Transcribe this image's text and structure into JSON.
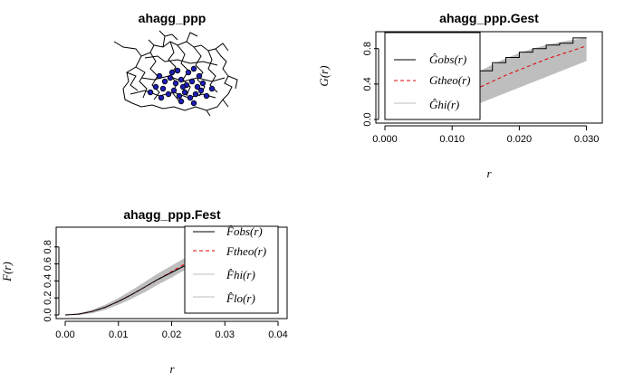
{
  "colors": {
    "line": "#000000",
    "theo": "#e00000",
    "envelope": "#bebebe",
    "points": "#1c1cb4"
  },
  "map_panel": {
    "title": "ahagg_ppp"
  },
  "chart_data": [
    {
      "id": "gest",
      "type": "line",
      "title": "ahagg_ppp.Gest",
      "xlabel": "r",
      "ylabel": "G(r)",
      "xlim": [
        0,
        0.031
      ],
      "ylim": [
        0,
        0.95
      ],
      "xticks": [
        "0.000",
        "0.010",
        "0.020",
        "0.030"
      ],
      "xtick_values": [
        0,
        0.01,
        0.02,
        0.03
      ],
      "yticks": [
        "0.0",
        "0.4",
        "0.8"
      ],
      "ytick_values": [
        0,
        0.4,
        0.8
      ],
      "legend": {
        "position": "top-left",
        "entries": [
          {
            "name": "obs",
            "label": "Ĝobs(r)",
            "style": "solid",
            "color": "#000000"
          },
          {
            "name": "theo",
            "label": "Gtheo(r)",
            "style": "dashed",
            "color": "#e00000"
          },
          {
            "name": "hi",
            "label": "Ĝhi(r)",
            "style": "solid",
            "color": "#bebebe"
          }
        ]
      },
      "series": [
        {
          "name": "obs",
          "x": [
            0,
            0.002,
            0.004,
            0.006,
            0.008,
            0.0095,
            0.011,
            0.013,
            0.014,
            0.016,
            0.018,
            0.02,
            0.022,
            0.024,
            0.026,
            0.028,
            0.03
          ],
          "values": [
            0,
            0.01,
            0.03,
            0.05,
            0.09,
            0.13,
            0.22,
            0.38,
            0.55,
            0.64,
            0.7,
            0.76,
            0.8,
            0.84,
            0.86,
            0.92,
            0.92
          ]
        },
        {
          "name": "theo",
          "x": [
            0,
            0.002,
            0.004,
            0.006,
            0.008,
            0.01,
            0.012,
            0.014,
            0.016,
            0.018,
            0.02,
            0.022,
            0.024,
            0.026,
            0.028,
            0.03
          ],
          "values": [
            0,
            0.02,
            0.06,
            0.11,
            0.16,
            0.22,
            0.29,
            0.36,
            0.43,
            0.5,
            0.56,
            0.62,
            0.68,
            0.73,
            0.78,
            0.83
          ]
        },
        {
          "name": "hi",
          "x": [
            0,
            0.002,
            0.004,
            0.006,
            0.008,
            0.01,
            0.012,
            0.014,
            0.016,
            0.018,
            0.02,
            0.022,
            0.024,
            0.026,
            0.028,
            0.03
          ],
          "values": [
            0.02,
            0.06,
            0.14,
            0.22,
            0.3,
            0.38,
            0.46,
            0.54,
            0.62,
            0.69,
            0.75,
            0.8,
            0.84,
            0.87,
            0.9,
            0.92
          ]
        },
        {
          "name": "lo",
          "x": [
            0,
            0.002,
            0.004,
            0.006,
            0.008,
            0.01,
            0.012,
            0.014,
            0.016,
            0.018,
            0.02,
            0.022,
            0.024,
            0.026,
            0.028,
            0.03
          ],
          "values": [
            0,
            0,
            0,
            0.02,
            0.05,
            0.08,
            0.13,
            0.18,
            0.24,
            0.3,
            0.36,
            0.42,
            0.48,
            0.54,
            0.6,
            0.66
          ]
        }
      ]
    },
    {
      "id": "fest",
      "type": "line",
      "title": "ahagg_ppp.Fest",
      "xlabel": "r",
      "ylabel": "F(r)",
      "xlim": [
        0,
        0.04
      ],
      "ylim": [
        0,
        1.0
      ],
      "xticks": [
        "0.00",
        "0.01",
        "0.02",
        "0.03",
        "0.04"
      ],
      "xtick_values": [
        0,
        0.01,
        0.02,
        0.03,
        0.04
      ],
      "yticks": [
        "0.0",
        "0.2",
        "0.4",
        "0.6",
        "0.8"
      ],
      "ytick_values": [
        0,
        0.2,
        0.4,
        0.6,
        0.8
      ],
      "legend": {
        "position": "right",
        "entries": [
          {
            "name": "obs",
            "label": "F̂obs(r)",
            "style": "solid",
            "color": "#000000"
          },
          {
            "name": "theo",
            "label": "Ftheo(r)",
            "style": "dashed",
            "color": "#e00000"
          },
          {
            "name": "hi",
            "label": "F̂hi(r)",
            "style": "solid",
            "color": "#bebebe"
          },
          {
            "name": "lo",
            "label": "F̂lo(r)",
            "style": "solid",
            "color": "#bebebe"
          }
        ]
      },
      "series": [
        {
          "name": "obs",
          "x": [
            0,
            0.0025,
            0.005,
            0.0075,
            0.01,
            0.0125,
            0.015,
            0.0175,
            0.02,
            0.0225,
            0.025,
            0.0275,
            0.03,
            0.0325,
            0.035,
            0.0375,
            0.04
          ],
          "values": [
            0,
            0.01,
            0.04,
            0.09,
            0.16,
            0.24,
            0.33,
            0.42,
            0.5,
            0.58,
            0.66,
            0.74,
            0.8,
            0.84,
            0.87,
            0.89,
            0.9
          ]
        },
        {
          "name": "theo",
          "x": [
            0,
            0.0025,
            0.005,
            0.0075,
            0.01,
            0.0125,
            0.015,
            0.0175,
            0.02,
            0.0225,
            0.025,
            0.0275,
            0.03,
            0.0325,
            0.035,
            0.0375,
            0.04
          ],
          "values": [
            0,
            0.01,
            0.04,
            0.09,
            0.16,
            0.24,
            0.33,
            0.42,
            0.51,
            0.6,
            0.68,
            0.75,
            0.81,
            0.86,
            0.9,
            0.93,
            0.95
          ]
        },
        {
          "name": "hi",
          "x": [
            0,
            0.0025,
            0.005,
            0.0075,
            0.01,
            0.0125,
            0.015,
            0.0175,
            0.02,
            0.0225,
            0.025,
            0.0275,
            0.03,
            0.0325,
            0.035,
            0.0375,
            0.04
          ],
          "values": [
            0,
            0.02,
            0.06,
            0.12,
            0.2,
            0.29,
            0.39,
            0.49,
            0.58,
            0.67,
            0.75,
            0.82,
            0.87,
            0.91,
            0.94,
            0.96,
            0.98
          ]
        },
        {
          "name": "lo",
          "x": [
            0,
            0.0025,
            0.005,
            0.0075,
            0.01,
            0.0125,
            0.015,
            0.0175,
            0.02,
            0.0225,
            0.025,
            0.0275,
            0.03,
            0.0325,
            0.035,
            0.0375,
            0.04
          ],
          "values": [
            0,
            0,
            0.02,
            0.06,
            0.12,
            0.19,
            0.27,
            0.36,
            0.44,
            0.53,
            0.61,
            0.68,
            0.74,
            0.79,
            0.83,
            0.86,
            0.88
          ]
        }
      ]
    }
  ]
}
